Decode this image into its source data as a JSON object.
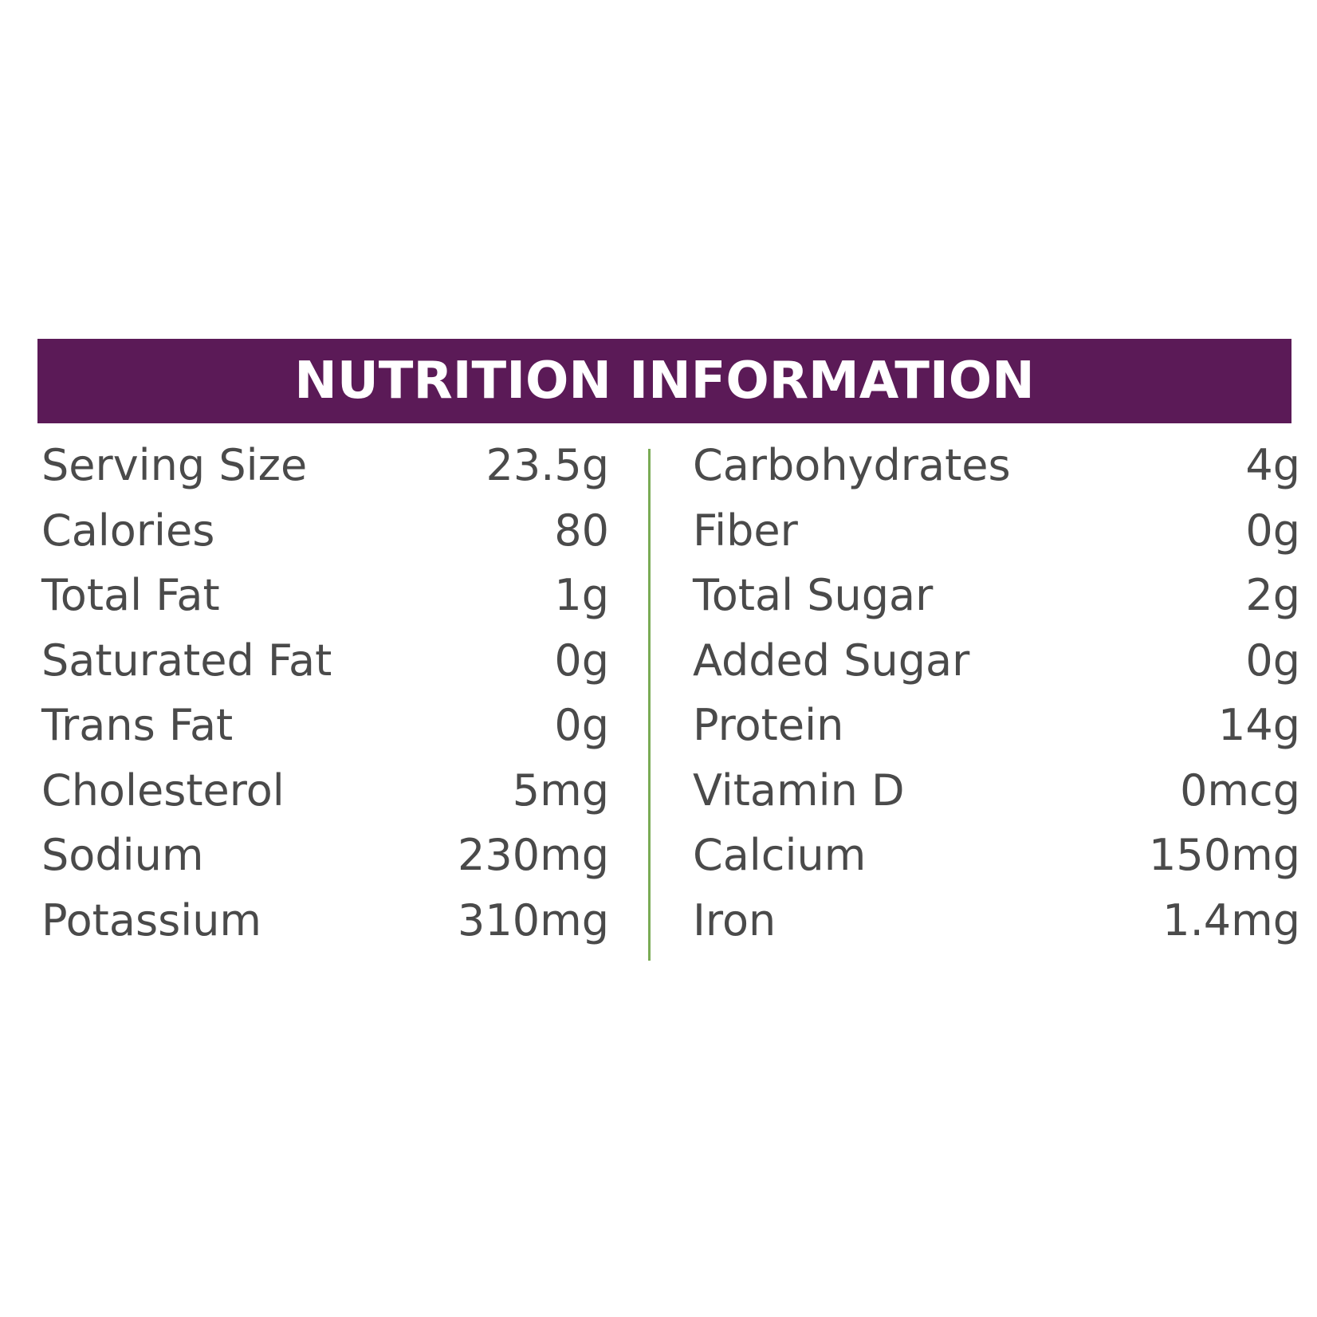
{
  "colors": {
    "header_bg": "#5b1a57",
    "divider": "#7aab55",
    "text": "#4a4a4a"
  },
  "header": {
    "title": "NUTRITION INFORMATION"
  },
  "left_column": [
    {
      "label": "Serving Size",
      "value": "23.5g"
    },
    {
      "label": "Calories",
      "value": "80"
    },
    {
      "label": "Total Fat",
      "value": "1g"
    },
    {
      "label": "Saturated Fat",
      "value": "0g"
    },
    {
      "label": "Trans Fat",
      "value": "0g"
    },
    {
      "label": "Cholesterol",
      "value": "5mg"
    },
    {
      "label": "Sodium",
      "value": "230mg"
    },
    {
      "label": "Potassium",
      "value": "310mg"
    }
  ],
  "right_column": [
    {
      "label": "Carbohydrates",
      "value": "4g"
    },
    {
      "label": "Fiber",
      "value": "0g"
    },
    {
      "label": "Total Sugar",
      "value": "2g"
    },
    {
      "label": "Added Sugar",
      "value": "0g"
    },
    {
      "label": "Protein",
      "value": "14g"
    },
    {
      "label": "Vitamin D",
      "value": "0mcg"
    },
    {
      "label": "Calcium",
      "value": "150mg"
    },
    {
      "label": "Iron",
      "value": "1.4mg"
    }
  ]
}
